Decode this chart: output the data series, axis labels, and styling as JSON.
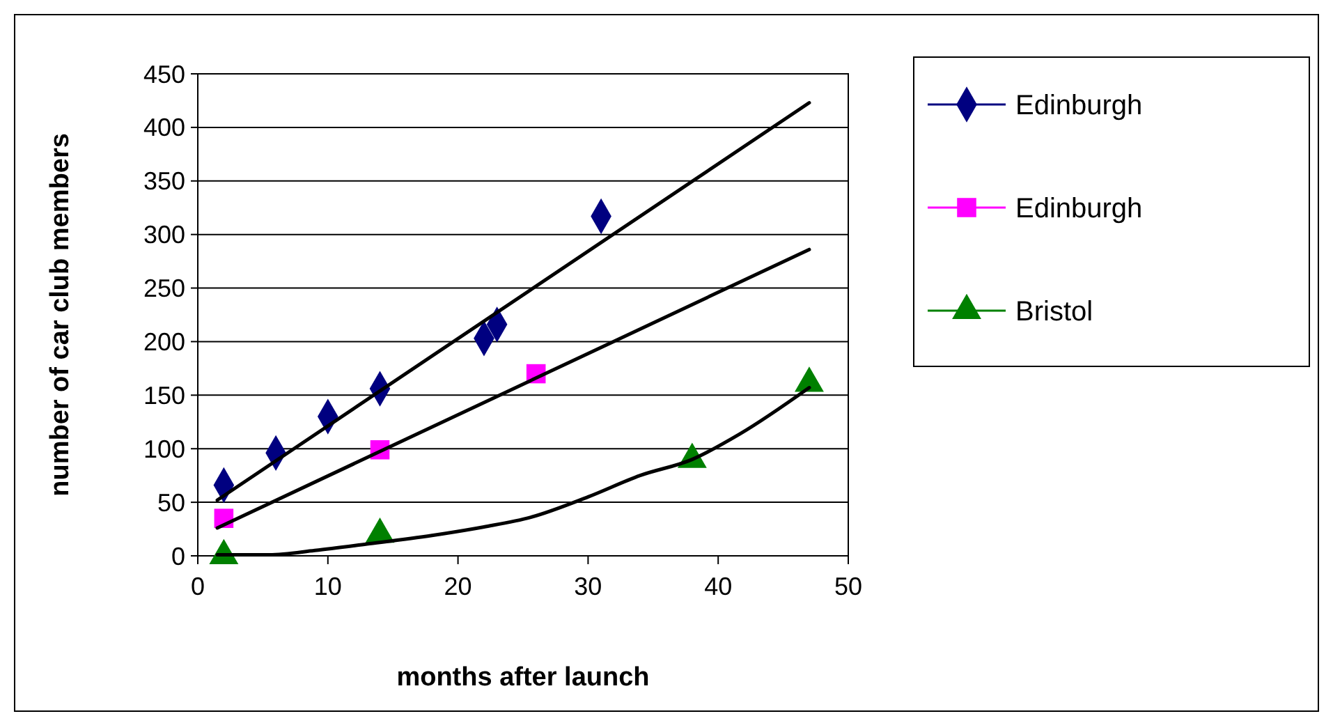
{
  "chart_data": {
    "type": "scatter",
    "xlabel": "months after launch",
    "ylabel": "number of car club members",
    "xlim": [
      0,
      50
    ],
    "xticks": [
      0,
      10,
      20,
      30,
      40,
      50
    ],
    "ylim": [
      0,
      450
    ],
    "yticks": [
      0,
      50,
      100,
      150,
      200,
      250,
      300,
      350,
      400,
      450
    ],
    "grid": "y",
    "legend": "right",
    "series": [
      {
        "name": "Edinburgh",
        "color": "#000080",
        "marker": "diamond",
        "x": [
          2,
          6,
          10,
          14,
          22,
          23,
          31
        ],
        "values": [
          66,
          96,
          130,
          156,
          203,
          216,
          317
        ]
      },
      {
        "name": "Edinburgh",
        "color": "#ff00ff",
        "marker": "square",
        "x": [
          2,
          14,
          26
        ],
        "values": [
          35,
          99,
          170
        ]
      },
      {
        "name": "Bristol",
        "color": "#008000",
        "marker": "triangle",
        "x": [
          2,
          14,
          38,
          47
        ],
        "values": [
          0,
          20,
          90,
          161
        ]
      },
      {
        "type": "line",
        "color": "#000000",
        "x": [
          1.5,
          47
        ],
        "values": [
          52,
          423
        ]
      },
      {
        "type": "line",
        "color": "#000000",
        "x": [
          1.5,
          47
        ],
        "values": [
          26,
          286
        ]
      },
      {
        "type": "line",
        "color": "#000000",
        "x": [
          1.5,
          5.5,
          9,
          13,
          18,
          22,
          25.6,
          30,
          34,
          38,
          41.7,
          47
        ],
        "values": [
          1,
          1,
          5,
          11,
          19,
          27,
          36,
          55,
          75,
          90,
          114,
          157
        ]
      }
    ]
  }
}
